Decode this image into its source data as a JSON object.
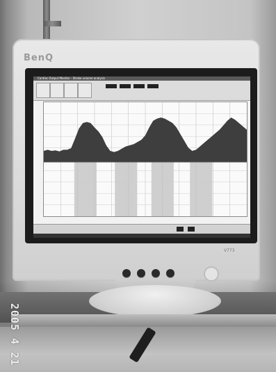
{
  "photo": {
    "brand": "BenQ",
    "model": "V773",
    "date_stamp": "2005 4 21"
  },
  "screen_ui": {
    "window_title": "Cardiac Output Monitor - Stroke volume analysis",
    "signal_points": [
      0.2,
      0.22,
      0.2,
      0.21,
      0.19,
      0.22,
      0.22,
      0.25,
      0.42,
      0.6,
      0.7,
      0.72,
      0.7,
      0.62,
      0.55,
      0.45,
      0.3,
      0.2,
      0.18,
      0.2,
      0.24,
      0.28,
      0.3,
      0.32,
      0.36,
      0.4,
      0.48,
      0.62,
      0.74,
      0.78,
      0.8,
      0.78,
      0.74,
      0.7,
      0.62,
      0.5,
      0.38,
      0.26,
      0.2,
      0.22,
      0.28,
      0.34,
      0.4,
      0.46,
      0.52,
      0.58,
      0.66,
      0.74,
      0.8,
      0.76,
      0.7,
      0.64,
      0.58
    ],
    "bands": [
      0.15,
      0.35,
      0.53,
      0.72
    ]
  }
}
